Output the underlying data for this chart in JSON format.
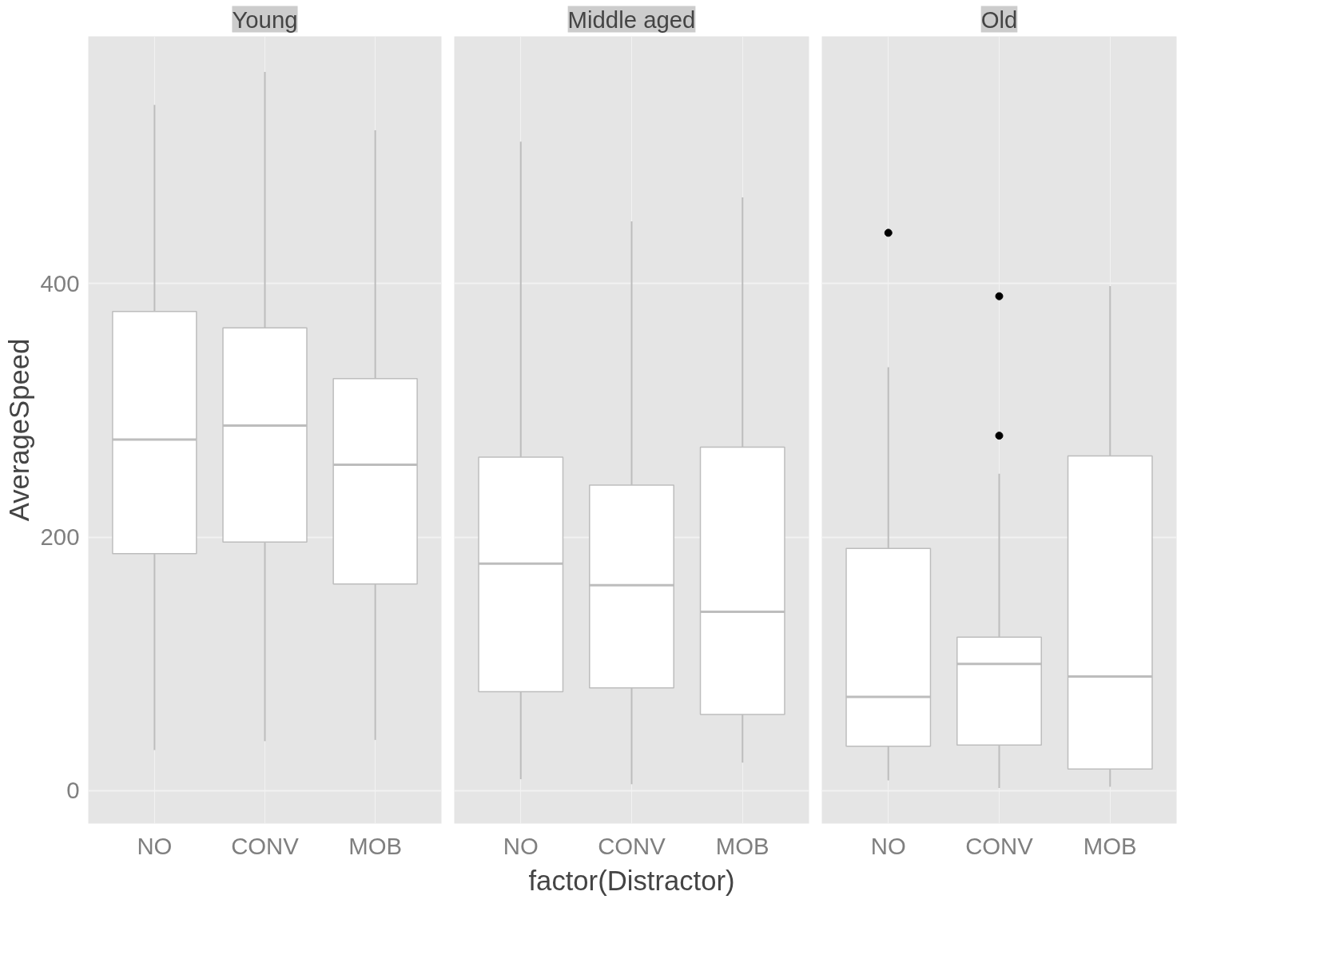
{
  "chart_data": [
    {
      "type": "box",
      "title": "Young",
      "ylabel": "AverageSpeed",
      "categories": [
        "NO",
        "CONV",
        "MOB"
      ],
      "ylim": [
        -26,
        595
      ],
      "yticks": [
        0,
        200,
        400
      ],
      "grid": true,
      "tick_labels": "xy",
      "color": "#ffffff",
      "boxes": [
        {
          "low": 32,
          "q1": 187,
          "median": 277,
          "q3": 378,
          "high": 541
        },
        {
          "low": 39,
          "q1": 196,
          "median": 288,
          "q3": 365,
          "high": 567
        },
        {
          "low": 40,
          "q1": 163,
          "median": 257,
          "q3": 325,
          "high": 521
        }
      ]
    },
    {
      "type": "box",
      "title": "Middle aged",
      "xlabel": "factor(Distractor)",
      "categories": [
        "NO",
        "CONV",
        "MOB"
      ],
      "ylim": [
        -26,
        595
      ],
      "yticks": [
        0,
        200,
        400
      ],
      "grid": true,
      "tick_labels": "x",
      "color": "#ffffff",
      "boxes": [
        {
          "low": 9,
          "q1": 78,
          "median": 179,
          "q3": 263,
          "high": 512
        },
        {
          "low": 5,
          "q1": 81,
          "median": 162,
          "q3": 241,
          "high": 449
        },
        {
          "low": 22,
          "q1": 60,
          "median": 141,
          "q3": 271,
          "high": 468
        }
      ]
    },
    {
      "type": "box",
      "title": "Old",
      "categories": [
        "NO",
        "CONV",
        "MOB"
      ],
      "ylim": [
        -26,
        595
      ],
      "yticks": [
        0,
        200,
        400
      ],
      "grid": true,
      "tick_labels": "x",
      "color": "#ffffff",
      "boxes": [
        {
          "low": 8,
          "q1": 35,
          "median": 74,
          "q3": 191,
          "high": 334,
          "outliers": [
            440
          ]
        },
        {
          "low": 2,
          "q1": 36,
          "median": 100,
          "q3": 121,
          "high": 250,
          "outliers": [
            390,
            280
          ]
        },
        {
          "low": 3,
          "q1": 17,
          "median": 90,
          "q3": 264,
          "high": 398
        }
      ]
    }
  ]
}
